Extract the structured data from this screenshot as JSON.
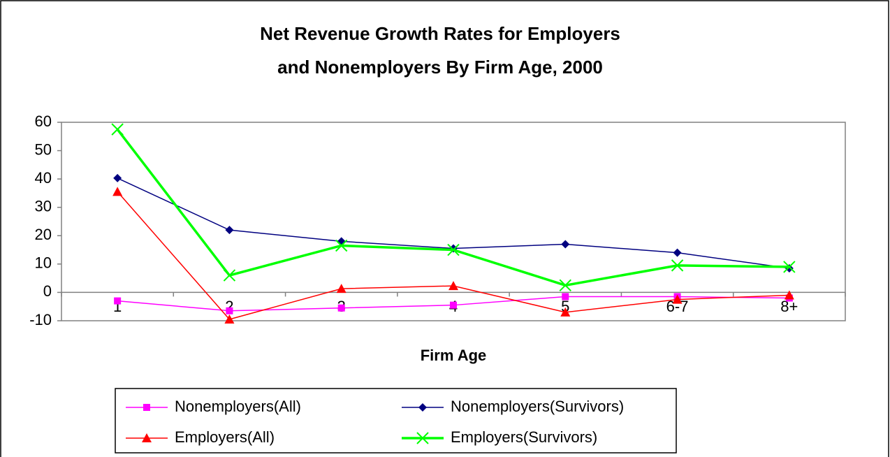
{
  "chart_data": {
    "type": "line",
    "title": [
      "Net Revenue Growth Rates for Employers",
      "and Nonemployers By Firm Age, 2000"
    ],
    "x_label": "Firm Age",
    "categories": [
      "1",
      "2",
      "3",
      "4",
      "5",
      "6-7",
      "8+"
    ],
    "series": [
      {
        "name": "Nonemployers(All)",
        "color": "#ff00ff",
        "marker": "square",
        "values": [
          -3,
          -6.5,
          -5.5,
          -4.5,
          -1.5,
          -1.5,
          -2
        ]
      },
      {
        "name": "Nonemployers(Survivors)",
        "color": "#000080",
        "marker": "diamond",
        "values": [
          40.3,
          22,
          18,
          15.5,
          17,
          14,
          8.5
        ]
      },
      {
        "name": "Employers(All)",
        "color": "#ff0000",
        "marker": "triangle",
        "values": [
          35.5,
          -9.5,
          1.3,
          2.3,
          -7,
          -2.5,
          -1
        ]
      },
      {
        "name": "Employers(Survivors)",
        "color": "#00ff00",
        "marker": "x",
        "values": [
          57.5,
          6,
          16.5,
          15,
          2.5,
          9.5,
          9
        ]
      }
    ],
    "ylim": [
      -10,
      60
    ],
    "yticks": [
      -10,
      0,
      10,
      20,
      30,
      40,
      50,
      60
    ],
    "grid": false,
    "legend": "bottom"
  }
}
